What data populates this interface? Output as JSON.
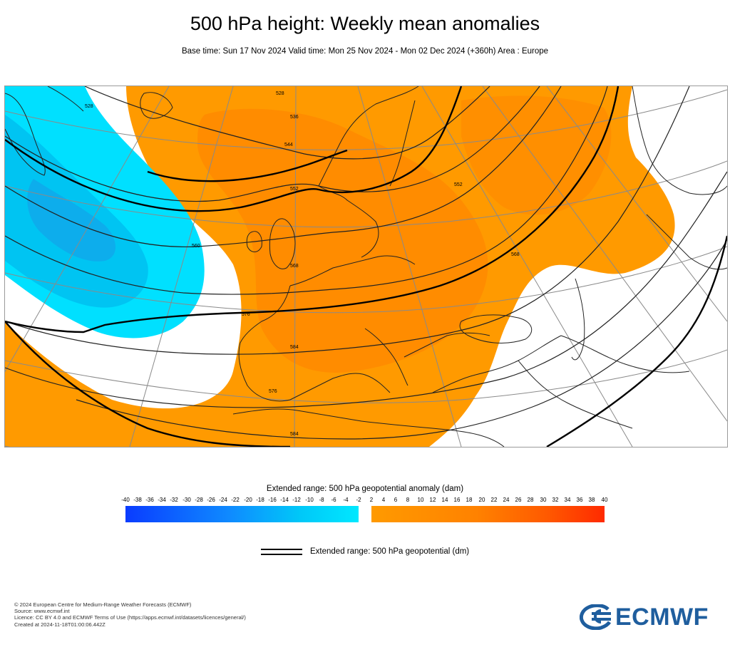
{
  "header": {
    "title": "500 hPa height: Weekly mean anomalies",
    "subtitle": "Base time: Sun 17 Nov 2024 Valid time: Mon 25 Nov 2024 - Mon 02 Dec 2024 (+360h) Area : Europe"
  },
  "map": {
    "region": "Europe",
    "contour_labels": [
      "528",
      "528",
      "536",
      "544",
      "552",
      "560",
      "568",
      "576",
      "584",
      "552",
      "568",
      "576",
      "584"
    ],
    "colors": {
      "strong_negative": "#00b4ee",
      "weak_negative": "#00e0ff",
      "near_zero": "#ffffff",
      "positive": "#ff9a00",
      "strong_positive": "#ff8000",
      "contour": "#222222",
      "graticule": "#8a8a8a",
      "coast": "#222222"
    }
  },
  "colorbar": {
    "title": "Extended range: 500 hPa geopotential anomaly (dam)",
    "negative_ticks": [
      "-40",
      "-38",
      "-36",
      "-34",
      "-32",
      "-30",
      "-28",
      "-26",
      "-24",
      "-22",
      "-20",
      "-18",
      "-16",
      "-14",
      "-12",
      "-10",
      "-8",
      "-6",
      "-4",
      "-2"
    ],
    "positive_ticks": [
      "2",
      "4",
      "6",
      "8",
      "10",
      "12",
      "14",
      "16",
      "18",
      "20",
      "22",
      "24",
      "26",
      "28",
      "30",
      "32",
      "34",
      "36",
      "38",
      "40"
    ],
    "negative_colors": [
      "#0a3cff",
      "#00e8ff"
    ],
    "positive_colors": [
      "#ff9a00",
      "#ff2a00"
    ]
  },
  "legend": {
    "label": "Extended range: 500 hPa geopotential (dm)"
  },
  "footer": {
    "line1": "© 2024 European Centre for Medium-Range Weather Forecasts (ECMWF)",
    "line2": "Source: www.ecmwf.int",
    "line3": "Licence: CC BY 4.0 and ECMWF Terms of Use (https://apps.ecmwf.int/datasets/licences/general/)",
    "line4": "Created at 2024-11-18T01:00:06.442Z"
  },
  "logo": {
    "text": "ECMWF",
    "color": "#1f5e9e"
  }
}
